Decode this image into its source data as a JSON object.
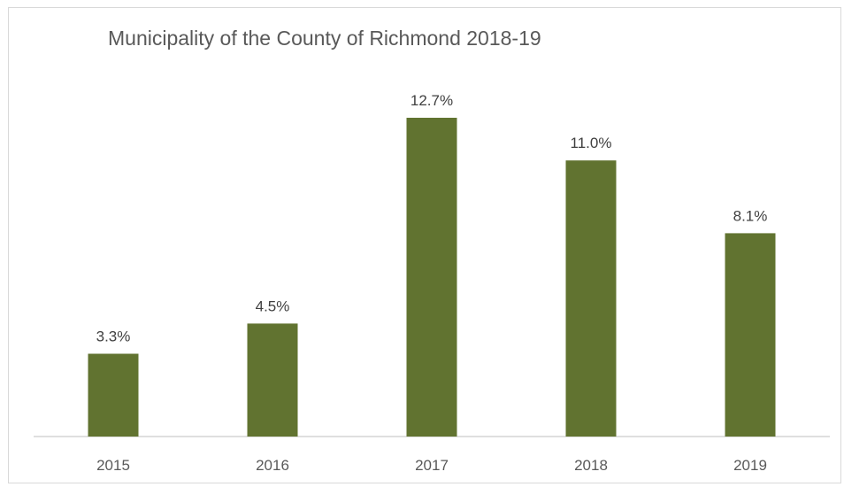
{
  "chart_data": {
    "type": "bar",
    "title": "Municipality of the County of Richmond 2018-19",
    "categories": [
      "2015",
      "2016",
      "2017",
      "2018",
      "2019"
    ],
    "values": [
      3.3,
      4.5,
      12.7,
      11.0,
      8.1
    ],
    "data_labels": [
      "3.3%",
      "4.5%",
      "12.7%",
      "11.0%",
      "8.1%"
    ],
    "ylim": [
      0,
      12.7
    ],
    "grid": false,
    "legend": "none",
    "bar_color": "#617330",
    "axis_color": "#bfbfbf"
  }
}
